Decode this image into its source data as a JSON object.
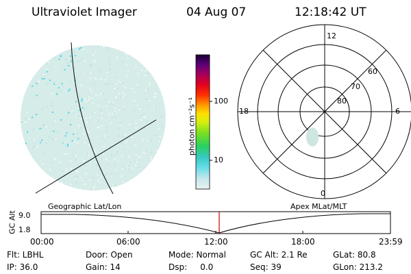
{
  "header": {
    "instrument": "Ultraviolet Imager",
    "date": "04 Aug 07",
    "time": "12:18:42 UT"
  },
  "colorbar": {
    "unit_label": "photon cm⁻²s⁻¹",
    "tick_100": "100",
    "tick_10": "10"
  },
  "polar_plot": {
    "label_top": "12",
    "label_bottom": "0",
    "label_left": "18",
    "label_right": "6",
    "lat_60": "60",
    "lat_70": "70",
    "lat_80": "80"
  },
  "timeline": {
    "left_title": "Geographic Lat/Lon",
    "right_title": "Apex MLat/MLT",
    "axis_label": "GC Alt",
    "y_top": "9.0",
    "y_bottom": "1.8",
    "ticks": [
      "00:00",
      "06:00",
      "12:00",
      "18:00",
      "23:59"
    ]
  },
  "info": {
    "flt": "Flt: LBHL",
    "door": "Door: Open",
    "mode": "Mode: Normal",
    "gc_alt": "GC Alt: 2.1 Re",
    "glat": "GLat:  80.8",
    "ip": "IP: 36.0",
    "gain": "Gain: 14",
    "dsp": "Dsp:     0.0",
    "seq": "Seq: 39",
    "glon": "GLon: 213.2"
  },
  "colors": {
    "marker": "#cc0000",
    "aurora_pale": "#d6ece9",
    "aurora_cyan": "#44d6e6"
  }
}
